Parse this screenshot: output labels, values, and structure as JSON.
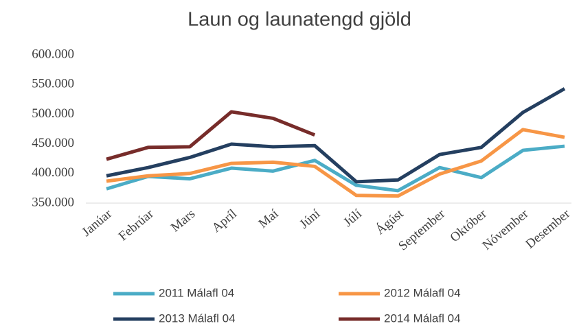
{
  "chart_data": {
    "type": "line",
    "title": "Laun og launatengd gjöld",
    "categories": [
      "Janúar",
      "Febrúar",
      "Mars",
      "Apríl",
      "Maí",
      "Júní",
      "Júlí",
      "Ágúst",
      "September",
      "Október",
      "Nóvember",
      "Desember"
    ],
    "series": [
      {
        "name": "2011 Málafl 04",
        "color": "#4bacc6",
        "values": [
          374000,
          395000,
          391000,
          409000,
          404000,
          422000,
          380000,
          371000,
          410000,
          393000,
          439000,
          446000
        ]
      },
      {
        "name": "2012 Málafl 04",
        "color": "#f79646",
        "values": [
          387000,
          396000,
          400000,
          417000,
          419000,
          412000,
          363000,
          362000,
          399000,
          421000,
          474000,
          461000
        ]
      },
      {
        "name": "2013 Málafl 04",
        "color": "#243f60",
        "values": [
          396000,
          410000,
          427000,
          449500,
          445000,
          447000,
          386000,
          389000,
          432000,
          444000,
          503000,
          543000
        ]
      },
      {
        "name": "2014 Málafl 04",
        "color": "#772c2a",
        "values": [
          424000,
          444000,
          445000,
          504000,
          493000,
          465000,
          null,
          null,
          null,
          null,
          null,
          null
        ]
      }
    ],
    "ylim": [
      350000,
      600000
    ],
    "yticks": [
      {
        "value": 350000,
        "label": "350.000"
      },
      {
        "value": 400000,
        "label": "400.000"
      },
      {
        "value": 450000,
        "label": "450.000"
      },
      {
        "value": 500000,
        "label": "500.000"
      },
      {
        "value": 550000,
        "label": "550.000"
      },
      {
        "value": 600000,
        "label": "600.000"
      }
    ]
  }
}
